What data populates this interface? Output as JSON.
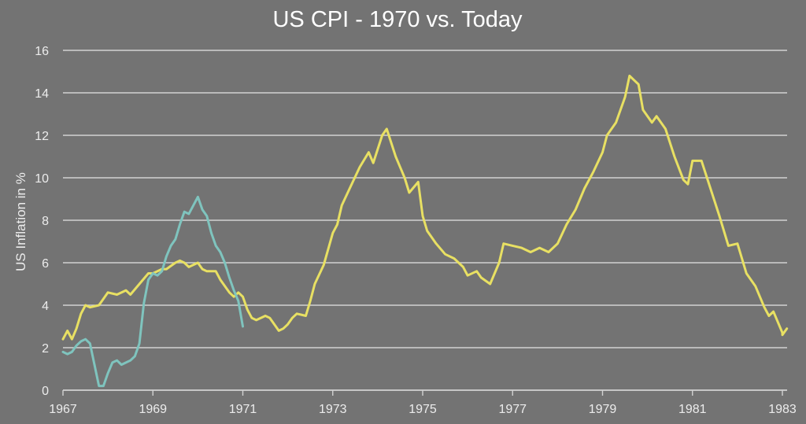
{
  "chart_data": {
    "type": "line",
    "title": "US CPI - 1970 vs. Today",
    "xlabel": "",
    "ylabel": "US Inflation in %",
    "xlim": [
      1967,
      1983
    ],
    "ylim": [
      0,
      16
    ],
    "xticks": [
      1967,
      1969,
      1971,
      1973,
      1975,
      1977,
      1979,
      1981,
      1983
    ],
    "yticks": [
      0,
      2,
      4,
      6,
      8,
      10,
      12,
      14,
      16
    ],
    "grid": true,
    "legend": "none",
    "colors": {
      "background": "#737373",
      "series1": "#e8e063",
      "series2": "#7fc4be",
      "text": "#ececec"
    },
    "series": [
      {
        "color": "#e8e063",
        "x": [
          1967.0,
          1967.1,
          1967.2,
          1967.3,
          1967.4,
          1967.5,
          1967.6,
          1967.8,
          1968.0,
          1968.2,
          1968.4,
          1968.5,
          1968.7,
          1968.9,
          1969.0,
          1969.2,
          1969.3,
          1969.5,
          1969.6,
          1969.7,
          1969.8,
          1970.0,
          1970.1,
          1970.2,
          1970.4,
          1970.5,
          1970.7,
          1970.8,
          1970.9,
          1971.0,
          1971.1,
          1971.2,
          1971.3,
          1971.5,
          1971.6,
          1971.8,
          1971.9,
          1972.0,
          1972.1,
          1972.2,
          1972.4,
          1972.5,
          1972.6,
          1972.8,
          1973.0,
          1973.1,
          1973.2,
          1973.4,
          1973.6,
          1973.8,
          1973.9,
          1974.1,
          1974.2,
          1974.4,
          1974.6,
          1974.7,
          1974.9,
          1975.0,
          1975.1,
          1975.3,
          1975.5,
          1975.7,
          1975.9,
          1976.0,
          1976.2,
          1976.3,
          1976.5,
          1976.7,
          1976.8,
          1977.0,
          1977.2,
          1977.4,
          1977.6,
          1977.8,
          1978.0,
          1978.2,
          1978.4,
          1978.6,
          1978.8,
          1979.0,
          1979.1,
          1979.3,
          1979.5,
          1979.6,
          1979.7,
          1979.8,
          1979.9,
          1980.1,
          1980.2,
          1980.4,
          1980.6,
          1980.8,
          1980.9,
          1981.0,
          1981.2,
          1981.4,
          1981.6,
          1981.8,
          1982.0,
          1982.2,
          1982.4,
          1982.6,
          1982.7,
          1982.8,
          1983.0
        ],
        "values": [
          2.4,
          2.8,
          2.4,
          2.9,
          3.6,
          4.0,
          3.9,
          4.0,
          4.6,
          4.5,
          4.7,
          4.5,
          5.0,
          5.5,
          5.5,
          5.7,
          5.7,
          6.0,
          6.1,
          6.0,
          5.8,
          6.0,
          5.7,
          5.6,
          5.6,
          5.2,
          4.6,
          4.4,
          4.6,
          4.4,
          3.8,
          3.4,
          3.3,
          3.5,
          3.4,
          2.8,
          2.9,
          3.1,
          3.4,
          3.6,
          3.5,
          4.2,
          5.0,
          5.9,
          7.4,
          7.8,
          8.7,
          9.6,
          10.5,
          11.2,
          10.7,
          12.0,
          12.3,
          11.0,
          10.0,
          9.3,
          9.8,
          8.2,
          7.5,
          6.9,
          6.4,
          6.2,
          5.8,
          5.4,
          5.6,
          5.3,
          5.0,
          6.0,
          6.9,
          6.8,
          6.7,
          6.5,
          6.7,
          6.5,
          6.9,
          7.8,
          8.5,
          9.5,
          10.3,
          11.2,
          12.0,
          12.6,
          13.8,
          14.8,
          14.6,
          14.4,
          13.2,
          12.6,
          12.9,
          12.3,
          11.0,
          9.9,
          9.7,
          10.8,
          10.8,
          9.5,
          8.2,
          6.8,
          6.9,
          5.5,
          4.9,
          3.9,
          3.5,
          3.7,
          2.7
        ],
        "note_x": [
          1983.0,
          1983.1
        ],
        "note_values": [
          2.6,
          2.9
        ]
      },
      {
        "color": "#7fc4be",
        "x": [
          1967.0,
          1967.1,
          1967.2,
          1967.3,
          1967.4,
          1967.5,
          1967.6,
          1967.7,
          1967.8,
          1967.9,
          1968.0,
          1968.1,
          1968.2,
          1968.3,
          1968.4,
          1968.5,
          1968.6,
          1968.7,
          1968.8,
          1968.9,
          1969.0,
          1969.1,
          1969.2,
          1969.3,
          1969.4,
          1969.5,
          1969.6,
          1969.7,
          1969.8,
          1969.9,
          1970.0,
          1970.1,
          1970.2,
          1970.3,
          1970.4,
          1970.5,
          1970.6,
          1970.7,
          1970.8,
          1970.9,
          1971.0
        ],
        "values": [
          1.8,
          1.7,
          1.8,
          2.1,
          2.3,
          2.4,
          2.2,
          1.2,
          0.2,
          0.2,
          0.8,
          1.3,
          1.4,
          1.2,
          1.3,
          1.4,
          1.6,
          2.2,
          4.1,
          5.2,
          5.5,
          5.4,
          5.6,
          6.3,
          6.8,
          7.1,
          7.8,
          8.4,
          8.3,
          8.7,
          9.1,
          8.5,
          8.2,
          7.4,
          6.8,
          6.5,
          6.0,
          5.3,
          4.7,
          4.2,
          3.0
        ]
      }
    ]
  }
}
